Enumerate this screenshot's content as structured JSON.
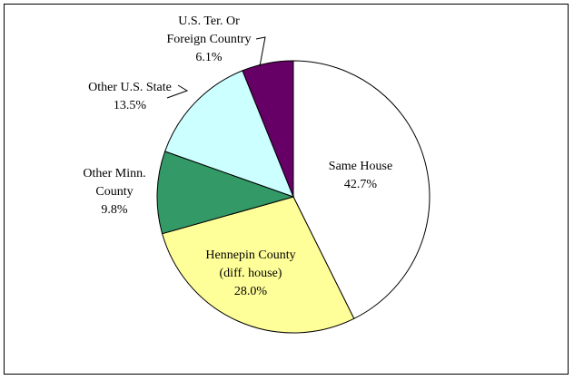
{
  "chart_data": {
    "type": "pie",
    "slices": [
      {
        "label_lines": [
          "Same House",
          "42.7%"
        ],
        "value": 42.7,
        "color": "#ffffff"
      },
      {
        "label_lines": [
          "Hennepin County",
          "(diff. house)",
          "28.0%"
        ],
        "value": 28.0,
        "color": "#ffff99"
      },
      {
        "label_lines": [
          "Other Minn.",
          "County",
          "9.8%"
        ],
        "value": 9.8,
        "color": "#339966"
      },
      {
        "label_lines": [
          "Other U.S. State",
          "13.5%"
        ],
        "value": 13.5,
        "color": "#ccffff"
      },
      {
        "label_lines": [
          "U.S. Ter. Or",
          "Foreign Country",
          "6.1%"
        ],
        "value": 6.1,
        "color": "#660066"
      }
    ]
  }
}
